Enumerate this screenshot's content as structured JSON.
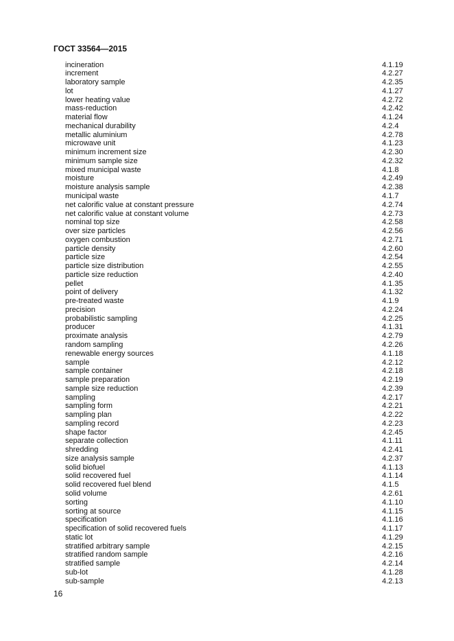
{
  "header": {
    "title": "ГОСТ 33564—2015"
  },
  "entries": [
    {
      "term": "incineration",
      "ref": "4.1.19"
    },
    {
      "term": "increment",
      "ref": "4.2.27"
    },
    {
      "term": "laboratory sample",
      "ref": "4.2.35"
    },
    {
      "term": "lot",
      "ref": "4.1.27"
    },
    {
      "term": "lower heating value",
      "ref": "4.2.72"
    },
    {
      "term": "mass-reduction",
      "ref": "4.2.42"
    },
    {
      "term": "material flow",
      "ref": "4.1.24"
    },
    {
      "term": "mechanical durability",
      "ref": "4.2.4"
    },
    {
      "term": "metallic aluminium",
      "ref": "4.2.78"
    },
    {
      "term": "microwave unit",
      "ref": "4.1.23"
    },
    {
      "term": "minimum increment size",
      "ref": "4.2.30"
    },
    {
      "term": "minimum sample size",
      "ref": "4.2.32"
    },
    {
      "term": "mixed municipal waste",
      "ref": "4.1.8"
    },
    {
      "term": "moisture",
      "ref": "4.2.49"
    },
    {
      "term": "moisture analysis sample",
      "ref": "4.2.38"
    },
    {
      "term": "municipal waste",
      "ref": "4.1.7"
    },
    {
      "term": "net calorific value at constant pressure",
      "ref": "4.2.74"
    },
    {
      "term": "net calorific value at constant volume",
      "ref": "4.2.73"
    },
    {
      "term": "nominal top size",
      "ref": "4.2.58"
    },
    {
      "term": "over size particles",
      "ref": "4.2.56"
    },
    {
      "term": "oxygen combustion",
      "ref": "4.2.71"
    },
    {
      "term": "particle density",
      "ref": "4.2.60"
    },
    {
      "term": "particle size",
      "ref": "4.2.54"
    },
    {
      "term": "particle size distribution",
      "ref": "4.2.55"
    },
    {
      "term": "particle size reduction",
      "ref": "4.2.40"
    },
    {
      "term": "pellet",
      "ref": "4.1.35"
    },
    {
      "term": "point of delivery",
      "ref": "4.1.32"
    },
    {
      "term": "pre-treated waste",
      "ref": "4.1.9"
    },
    {
      "term": "precision",
      "ref": "4.2.24"
    },
    {
      "term": "probabilistic sampling",
      "ref": "4.2.25"
    },
    {
      "term": "producer",
      "ref": "4.1.31"
    },
    {
      "term": "proximate analysis",
      "ref": "4.2.79"
    },
    {
      "term": "random sampling",
      "ref": "4.2.26"
    },
    {
      "term": "renewable energy sources",
      "ref": "4.1.18"
    },
    {
      "term": "sample",
      "ref": "4.2.12"
    },
    {
      "term": "sample container",
      "ref": "4.2.18"
    },
    {
      "term": "sample preparation",
      "ref": "4.2.19"
    },
    {
      "term": "sample size reduction",
      "ref": "4.2.39"
    },
    {
      "term": "sampling",
      "ref": "4.2.17"
    },
    {
      "term": "sampling form",
      "ref": "4.2.21"
    },
    {
      "term": "sampling plan",
      "ref": "4.2.22"
    },
    {
      "term": "sampling record",
      "ref": "4.2.23"
    },
    {
      "term": "shape factor",
      "ref": "4.2.45"
    },
    {
      "term": "separate collection",
      "ref": "4.1.11"
    },
    {
      "term": "shredding",
      "ref": "4.2.41"
    },
    {
      "term": "size analysis sample",
      "ref": "4.2.37"
    },
    {
      "term": "solid biofuel",
      "ref": "4.1.13"
    },
    {
      "term": "solid recovered fuel",
      "ref": "4.1.14"
    },
    {
      "term": "solid recovered fuel blend",
      "ref": "4.1.5"
    },
    {
      "term": "solid volume",
      "ref": "4.2.61"
    },
    {
      "term": "sorting",
      "ref": "4.1.10"
    },
    {
      "term": "sorting at source",
      "ref": "4.1.15"
    },
    {
      "term": "specification",
      "ref": "4.1.16"
    },
    {
      "term": "specification of solid recovered fuels",
      "ref": "4.1.17"
    },
    {
      "term": "static lot",
      "ref": "4.1.29"
    },
    {
      "term": "stratified arbitrary sample",
      "ref": "4.2.15"
    },
    {
      "term": "stratified random sample",
      "ref": "4.2.16"
    },
    {
      "term": "stratified sample",
      "ref": "4.2.14"
    },
    {
      "term": "sub-lot",
      "ref": "4.1.28"
    },
    {
      "term": "sub-sample",
      "ref": "4.2.13"
    }
  ],
  "footer": {
    "page_number": "16"
  }
}
